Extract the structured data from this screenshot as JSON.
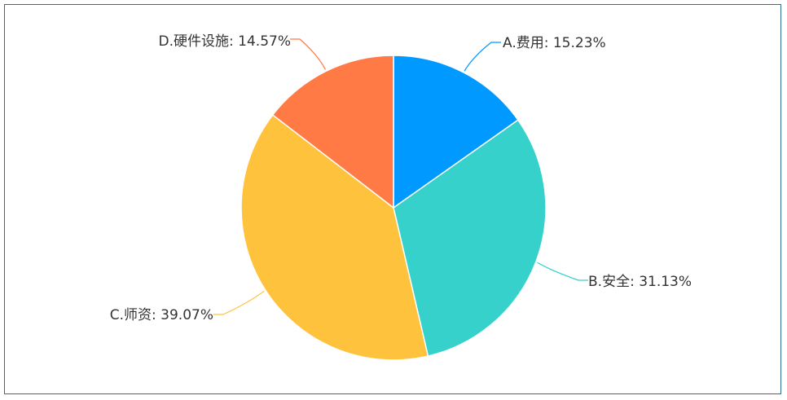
{
  "chart_data": {
    "type": "pie",
    "start_angle_deg": 90,
    "direction": "clockwise",
    "slices": [
      {
        "label": "A.费用",
        "value": 15.23,
        "display": "A.费用: 15.23%",
        "color": "#0099ff"
      },
      {
        "label": "B.安全",
        "value": 31.13,
        "display": "B.安全: 31.13%",
        "color": "#37d1cc"
      },
      {
        "label": "C.师资",
        "value": 39.07,
        "display": "C.师资: 39.07%",
        "color": "#ffc23d"
      },
      {
        "label": "D.硬件设施",
        "value": 14.57,
        "display": "D.硬件设施: 14.57%",
        "color": "#ff7a45"
      }
    ]
  }
}
